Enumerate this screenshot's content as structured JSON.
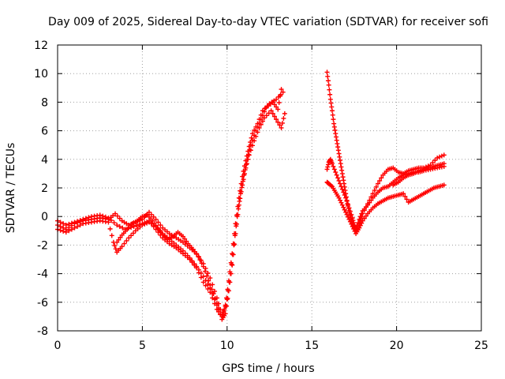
{
  "chart_data": {
    "type": "scatter",
    "title": "Day 009 of 2025, Sidereal Day-to-day VTEC variation (SDTVAR) for receiver sofi",
    "xlabel": "GPS time / hours",
    "ylabel": "SDTVAR / TECUs",
    "xlim": [
      0,
      25
    ],
    "ylim": [
      -8,
      12
    ],
    "xticks": [
      0,
      5,
      10,
      15,
      20,
      25
    ],
    "yticks": [
      -8,
      -6,
      -4,
      -2,
      0,
      2,
      4,
      6,
      8,
      10,
      12
    ],
    "grid": true,
    "marker": "+",
    "series_color": "#ff0000",
    "series": [
      {
        "tracks": [
          [
            [
              0.0,
              -0.6
            ],
            [
              0.5,
              -0.9
            ],
            [
              1.0,
              -0.5
            ],
            [
              1.5,
              -0.3
            ],
            [
              2.0,
              -0.2
            ],
            [
              2.5,
              -0.1
            ],
            [
              3.0,
              -0.2
            ],
            [
              3.4,
              0.2
            ],
            [
              3.8,
              -0.3
            ],
            [
              4.2,
              -0.6
            ],
            [
              4.6,
              -0.4
            ],
            [
              5.0,
              -0.2
            ],
            [
              5.4,
              0.3
            ],
            [
              5.8,
              -0.2
            ],
            [
              6.2,
              -0.8
            ],
            [
              6.6,
              -1.2
            ],
            [
              7.0,
              -1.5
            ],
            [
              7.4,
              -1.8
            ],
            [
              7.8,
              -2.2
            ],
            [
              8.2,
              -2.6
            ],
            [
              8.6,
              -3.3
            ],
            [
              9.0,
              -4.3
            ],
            [
              9.4,
              -5.7
            ],
            [
              9.7,
              -6.9
            ],
            [
              9.9,
              -6.3
            ],
            [
              10.1,
              -4.5
            ],
            [
              10.3,
              -2.6
            ],
            [
              10.5,
              -0.5
            ],
            [
              10.7,
              1.3
            ],
            [
              10.9,
              2.8
            ],
            [
              11.1,
              3.9
            ],
            [
              11.3,
              4.9
            ],
            [
              11.5,
              5.8
            ],
            [
              11.8,
              6.5
            ],
            [
              12.1,
              7.4
            ],
            [
              12.5,
              7.9
            ],
            [
              12.9,
              8.2
            ],
            [
              13.3,
              8.7
            ]
          ],
          [
            [
              0.0,
              -0.9
            ],
            [
              0.5,
              -1.1
            ],
            [
              1.0,
              -0.8
            ],
            [
              1.5,
              -0.5
            ],
            [
              2.0,
              -0.4
            ],
            [
              2.5,
              -0.3
            ],
            [
              3.0,
              -0.4
            ],
            [
              3.3,
              -1.8
            ],
            [
              3.5,
              -2.5
            ],
            [
              3.8,
              -2.1
            ],
            [
              4.2,
              -1.5
            ],
            [
              4.6,
              -1.0
            ],
            [
              5.0,
              -0.6
            ],
            [
              5.4,
              -0.4
            ],
            [
              5.8,
              -0.7
            ],
            [
              6.2,
              -1.2
            ],
            [
              6.6,
              -1.6
            ],
            [
              7.0,
              -2.0
            ],
            [
              7.4,
              -2.4
            ],
            [
              7.8,
              -2.9
            ],
            [
              8.2,
              -3.5
            ],
            [
              8.6,
              -4.2
            ],
            [
              9.0,
              -5.0
            ],
            [
              9.4,
              -6.2
            ],
            [
              9.7,
              -7.2
            ],
            [
              9.9,
              -6.8
            ],
            [
              10.1,
              -5.2
            ],
            [
              10.3,
              -3.4
            ],
            [
              10.5,
              -1.2
            ],
            [
              10.7,
              0.8
            ],
            [
              10.9,
              2.2
            ],
            [
              11.1,
              3.4
            ],
            [
              11.3,
              4.3
            ],
            [
              11.6,
              5.3
            ],
            [
              11.9,
              6.2
            ],
            [
              12.2,
              6.9
            ],
            [
              12.6,
              7.4
            ],
            [
              12.9,
              6.8
            ],
            [
              13.2,
              6.2
            ],
            [
              13.4,
              7.2
            ]
          ],
          [
            [
              0.0,
              -0.3
            ],
            [
              0.5,
              -0.6
            ],
            [
              1.0,
              -0.4
            ],
            [
              1.5,
              -0.2
            ],
            [
              2.0,
              0.0
            ],
            [
              2.5,
              0.1
            ],
            [
              3.0,
              -0.1
            ],
            [
              3.5,
              -0.6
            ],
            [
              4.0,
              -0.9
            ],
            [
              4.5,
              -0.7
            ],
            [
              5.0,
              -0.5
            ],
            [
              5.4,
              -0.3
            ],
            [
              5.8,
              -0.9
            ],
            [
              6.2,
              -1.5
            ],
            [
              6.6,
              -1.9
            ],
            [
              7.0,
              -2.2
            ],
            [
              7.4,
              -2.6
            ],
            [
              7.8,
              -3.0
            ],
            [
              8.2,
              -3.6
            ],
            [
              8.6,
              -4.6
            ],
            [
              9.0,
              -5.3
            ],
            [
              9.4,
              -6.5
            ],
            [
              9.7,
              -7.0
            ],
            [
              10.0,
              -5.8
            ],
            [
              10.2,
              -4.0
            ],
            [
              10.4,
              -2.0
            ],
            [
              10.6,
              0.0
            ],
            [
              10.8,
              1.6
            ],
            [
              11.0,
              2.9
            ],
            [
              11.2,
              4.0
            ],
            [
              11.4,
              5.0
            ],
            [
              11.7,
              6.0
            ],
            [
              12.0,
              6.8
            ],
            [
              12.3,
              7.6
            ],
            [
              12.7,
              8.0
            ],
            [
              13.0,
              7.5
            ],
            [
              13.2,
              8.9
            ]
          ],
          [
            [
              15.9,
              10.1
            ],
            [
              16.0,
              9.2
            ],
            [
              16.1,
              8.2
            ],
            [
              16.2,
              7.4
            ],
            [
              16.3,
              6.5
            ],
            [
              16.4,
              5.8
            ],
            [
              16.5,
              5.1
            ],
            [
              16.6,
              4.4
            ],
            [
              16.7,
              3.7
            ],
            [
              16.8,
              3.0
            ],
            [
              16.9,
              2.3
            ],
            [
              17.0,
              1.6
            ],
            [
              17.1,
              0.9
            ],
            [
              17.2,
              0.4
            ],
            [
              17.3,
              -0.1
            ],
            [
              17.4,
              -0.5
            ],
            [
              17.5,
              -0.8
            ],
            [
              17.6,
              -1.0
            ],
            [
              17.8,
              -0.5
            ],
            [
              18.0,
              0.2
            ],
            [
              18.3,
              0.9
            ],
            [
              18.6,
              1.6
            ],
            [
              18.9,
              2.3
            ],
            [
              19.2,
              2.9
            ],
            [
              19.5,
              3.3
            ],
            [
              19.8,
              3.4
            ],
            [
              20.1,
              3.1
            ],
            [
              20.4,
              3.0
            ],
            [
              20.7,
              3.2
            ],
            [
              21.0,
              3.3
            ],
            [
              21.3,
              3.4
            ],
            [
              21.6,
              3.4
            ],
            [
              22.0,
              3.6
            ],
            [
              22.4,
              4.1
            ],
            [
              22.8,
              4.3
            ]
          ],
          [
            [
              15.9,
              3.3
            ],
            [
              16.0,
              3.8
            ],
            [
              16.1,
              4.0
            ],
            [
              16.2,
              3.7
            ],
            [
              16.4,
              3.1
            ],
            [
              16.6,
              2.5
            ],
            [
              16.8,
              1.9
            ],
            [
              17.0,
              1.3
            ],
            [
              17.2,
              0.6
            ],
            [
              17.4,
              -0.1
            ],
            [
              17.5,
              -0.6
            ],
            [
              17.6,
              -0.9
            ],
            [
              17.8,
              -0.2
            ],
            [
              18.0,
              0.4
            ],
            [
              18.3,
              0.8
            ],
            [
              18.6,
              1.3
            ],
            [
              18.9,
              1.7
            ],
            [
              19.2,
              2.0
            ],
            [
              19.5,
              2.1
            ],
            [
              19.8,
              2.4
            ],
            [
              20.1,
              2.7
            ],
            [
              20.4,
              2.9
            ],
            [
              20.7,
              3.0
            ],
            [
              21.0,
              3.1
            ],
            [
              21.3,
              3.1
            ],
            [
              21.6,
              3.2
            ],
            [
              22.0,
              3.3
            ],
            [
              22.4,
              3.4
            ],
            [
              22.8,
              3.5
            ]
          ],
          [
            [
              15.9,
              2.4
            ],
            [
              16.0,
              2.3
            ],
            [
              16.2,
              2.1
            ],
            [
              16.4,
              1.7
            ],
            [
              16.6,
              1.3
            ],
            [
              16.8,
              0.8
            ],
            [
              17.0,
              0.3
            ],
            [
              17.2,
              -0.2
            ],
            [
              17.4,
              -0.7
            ],
            [
              17.6,
              -1.2
            ],
            [
              17.8,
              -0.8
            ],
            [
              18.0,
              -0.3
            ],
            [
              18.3,
              0.2
            ],
            [
              18.6,
              0.6
            ],
            [
              18.9,
              0.9
            ],
            [
              19.2,
              1.1
            ],
            [
              19.5,
              1.3
            ],
            [
              19.8,
              1.4
            ],
            [
              20.1,
              1.5
            ],
            [
              20.4,
              1.6
            ],
            [
              20.7,
              1.0
            ],
            [
              21.0,
              1.2
            ],
            [
              21.3,
              1.4
            ],
            [
              21.6,
              1.6
            ],
            [
              21.9,
              1.8
            ],
            [
              22.2,
              2.0
            ],
            [
              22.5,
              2.1
            ],
            [
              22.8,
              2.2
            ]
          ],
          [
            [
              3.5,
              -1.8
            ],
            [
              3.8,
              -1.3
            ],
            [
              4.1,
              -0.9
            ],
            [
              4.4,
              -0.5
            ],
            [
              4.7,
              -0.3
            ],
            [
              5.0,
              0.0
            ],
            [
              5.3,
              0.1
            ],
            [
              5.6,
              -0.3
            ],
            [
              5.9,
              -0.8
            ],
            [
              6.2,
              -1.3
            ],
            [
              6.5,
              -1.6
            ],
            [
              6.8,
              -1.4
            ],
            [
              7.1,
              -1.1
            ],
            [
              7.4,
              -1.4
            ],
            [
              7.7,
              -1.9
            ],
            [
              8.0,
              -2.3
            ],
            [
              8.3,
              -2.8
            ],
            [
              8.6,
              -3.5
            ],
            [
              8.9,
              -4.5
            ],
            [
              9.2,
              -5.4
            ],
            [
              9.5,
              -6.4
            ]
          ],
          [
            [
              19.8,
              2.2
            ],
            [
              20.1,
              2.4
            ],
            [
              20.4,
              2.7
            ],
            [
              20.7,
              2.9
            ],
            [
              21.0,
              3.0
            ],
            [
              21.3,
              3.2
            ],
            [
              21.6,
              3.3
            ],
            [
              21.9,
              3.4
            ],
            [
              22.2,
              3.5
            ],
            [
              22.5,
              3.6
            ],
            [
              22.8,
              3.7
            ]
          ]
        ]
      }
    ]
  }
}
